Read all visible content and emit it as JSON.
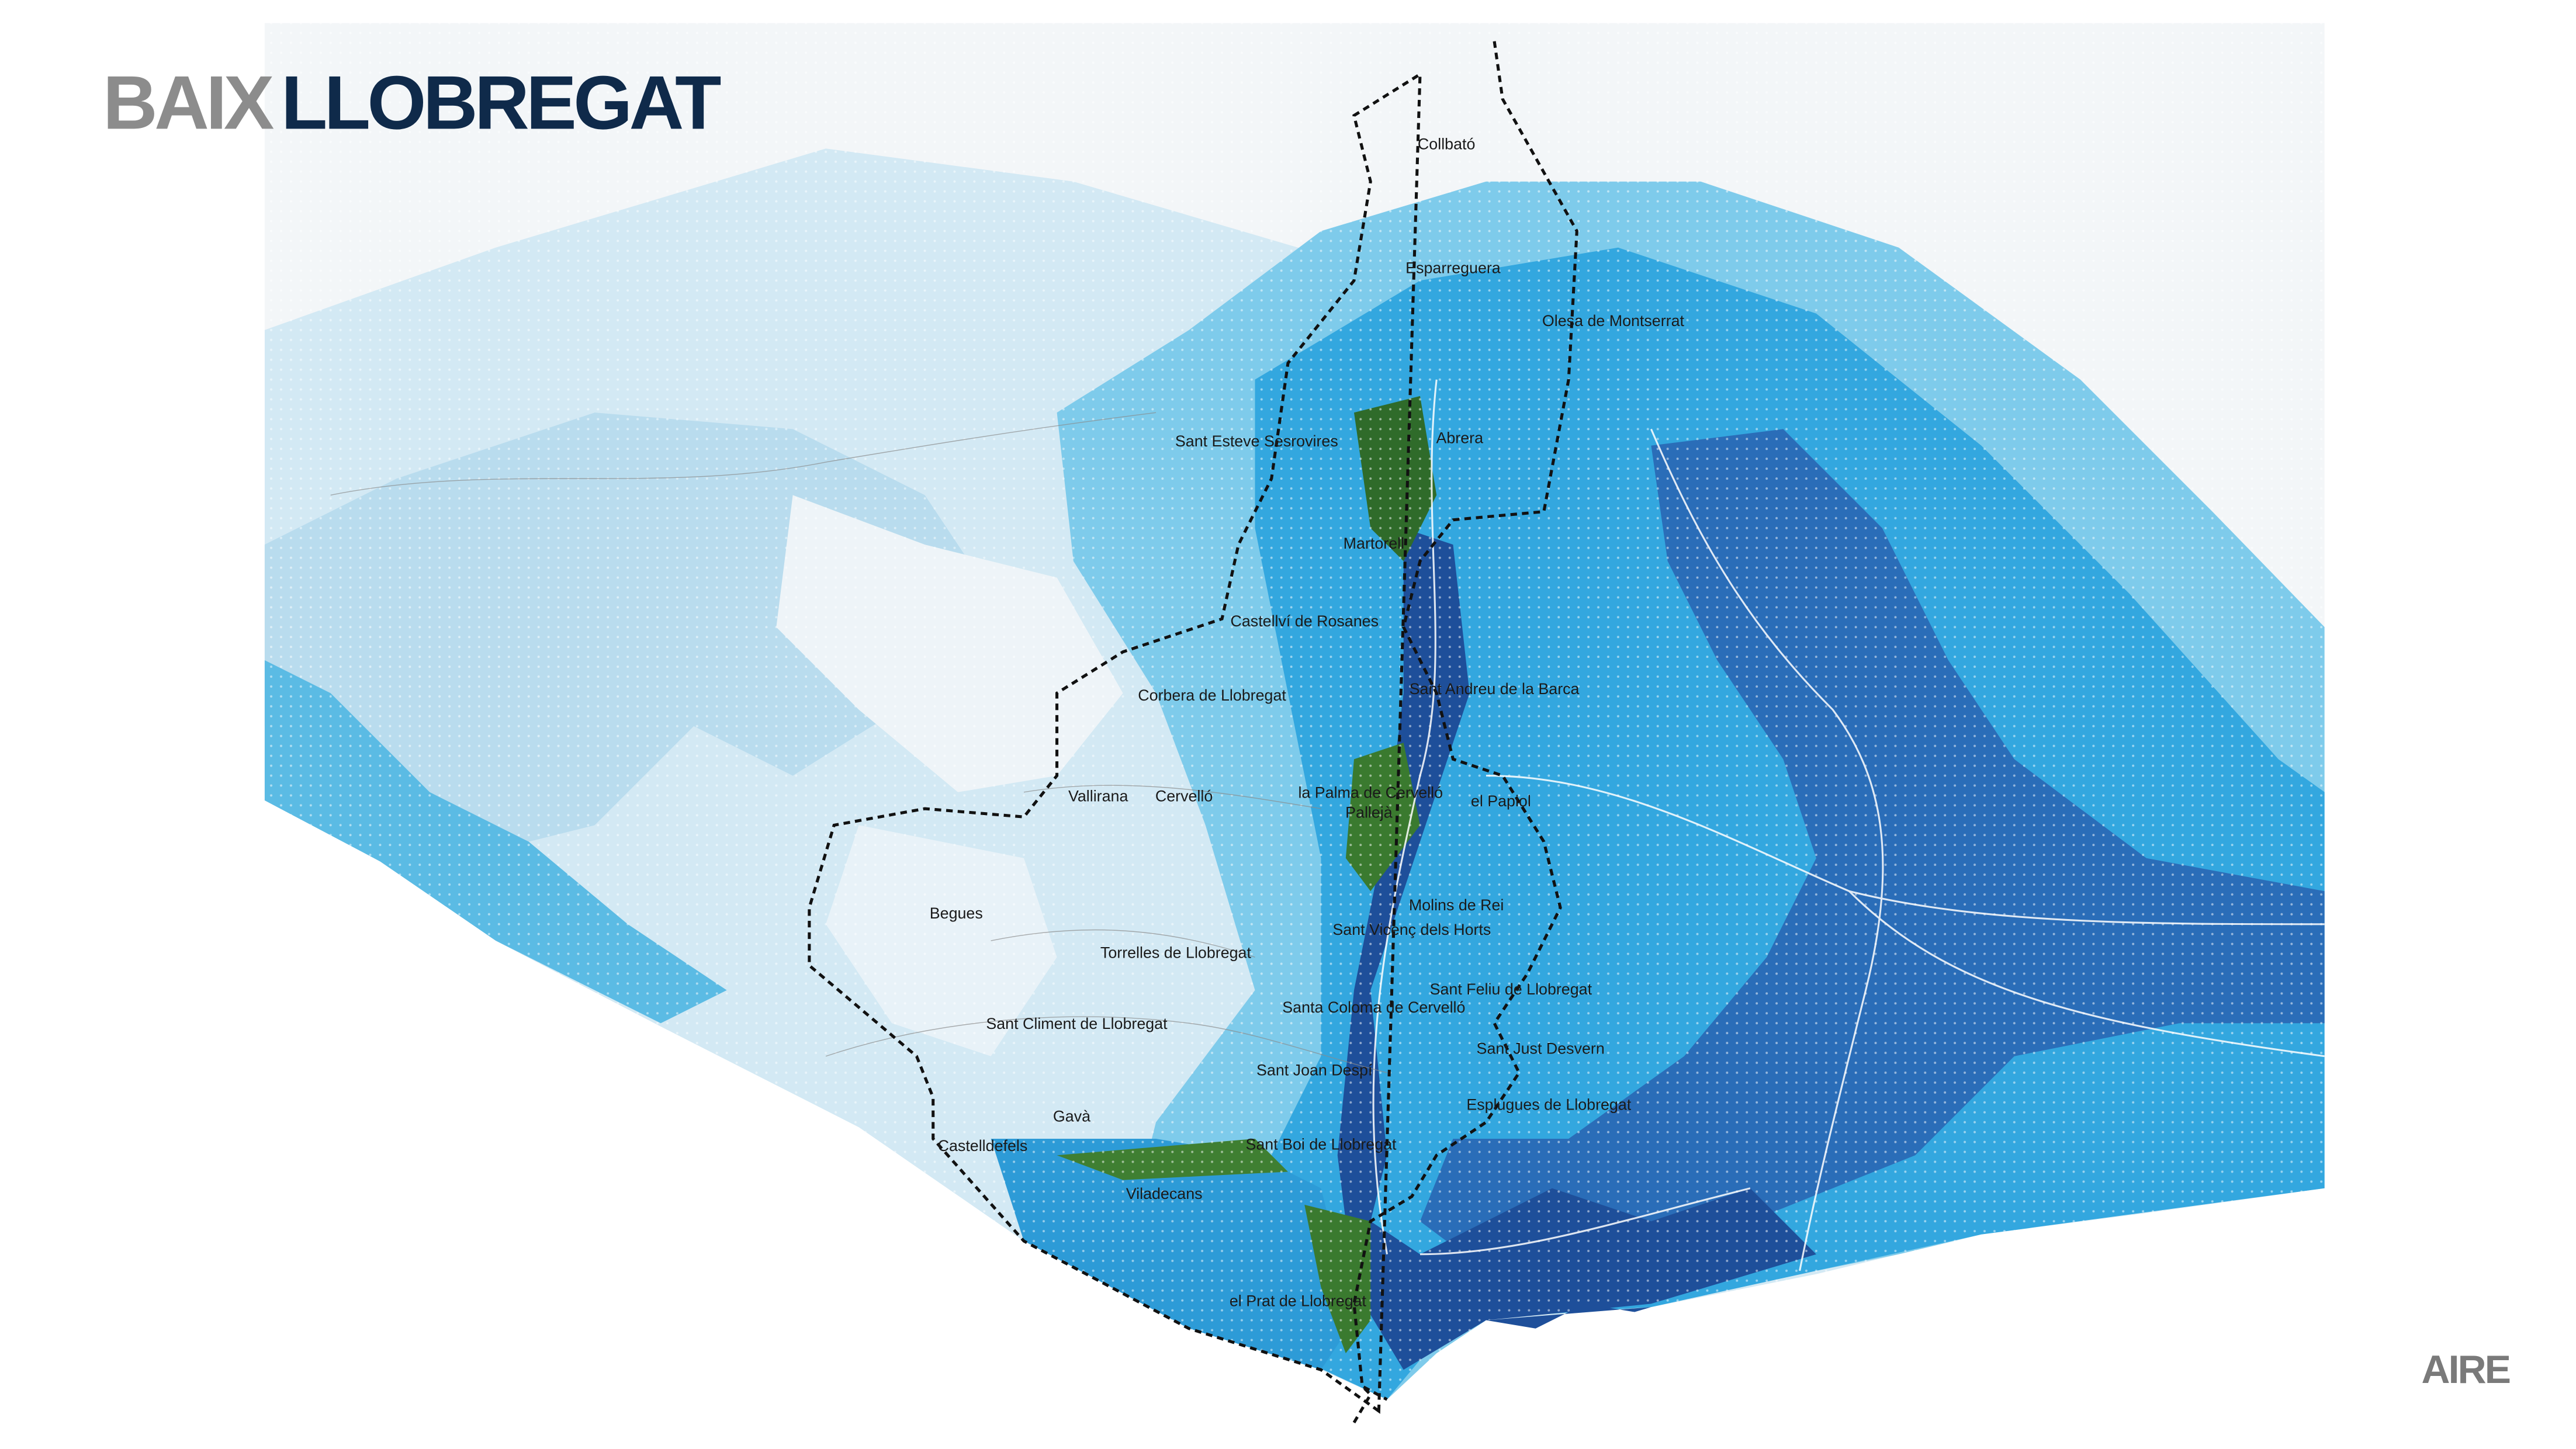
{
  "title": {
    "first": "BAIX",
    "second": "LLOBREGAT"
  },
  "layer_label": "AIRE",
  "towns": [
    "Collbató",
    "Esparreguera",
    "Olesa de Montserrat",
    "Sant Esteve Sesrovires",
    "Abrera",
    "Martorell",
    "Castellví de Rosanes",
    "Corbera de Llobregat",
    "Sant Andreu de la Barca",
    "Vallirana",
    "Cervelló",
    "la Palma de Cervelló",
    "Pallejà",
    "el Papiol",
    "Begues",
    "Molins de Rei",
    "Sant Vicenç dels Horts",
    "Torrelles de Llobregat",
    "Sant Feliu de Llobregat",
    "Santa Coloma de Cervelló",
    "Sant Climent de Llobregat",
    "Sant Just Desvern",
    "Sant Joan Despí",
    "Esplugues de Llobregat",
    "Gavà",
    "Sant Boi de Llobregat",
    "Castelldefels",
    "Viladecans",
    "el Prat de Llobregat"
  ]
}
